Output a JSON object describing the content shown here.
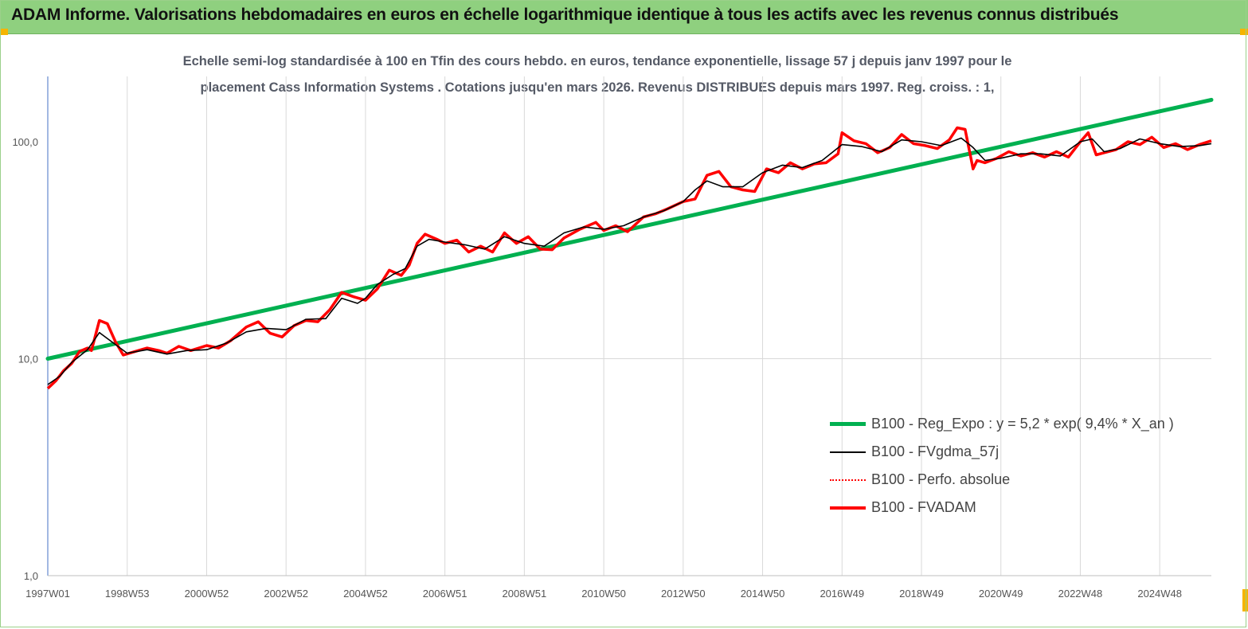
{
  "header": {
    "title": "ADAM Informe. Valorisations hebdomadaires en euros en échelle logarithmique identique à tous les actifs avec les revenus connus distribués"
  },
  "colors": {
    "header_bg": "#8fd07f",
    "trend": "#00b050",
    "fvgdma": "#000000",
    "perfo": "#ff0000",
    "fvadam": "#ff0000"
  },
  "chart_data": {
    "type": "line",
    "title_line1": "Echelle semi-log standardisée à 100 en Tfin des cours hebdo. en euros, tendance exponentielle, lissage 57 j depuis janv 1997 pour le",
    "title_line2": "placement Cass Information Systems .  Cotations jusqu'en mars 2026. Revenus DISTRIBUES depuis mars 1997.  Reg. croiss. : 1,",
    "y_scale": "log",
    "ylim": [
      1,
      200
    ],
    "y_ticks": [
      {
        "value": 1,
        "label": "1,0"
      },
      {
        "value": 10,
        "label": "10,0"
      },
      {
        "value": 100,
        "label": "100,0"
      }
    ],
    "xlim": [
      1997.0,
      2026.3
    ],
    "x_ticks": [
      {
        "year": 1997.0,
        "label": "1997W01"
      },
      {
        "year": 1999.0,
        "label": "1998W53"
      },
      {
        "year": 2001.0,
        "label": "2000W52"
      },
      {
        "year": 2003.0,
        "label": "2002W52"
      },
      {
        "year": 2005.0,
        "label": "2004W52"
      },
      {
        "year": 2007.0,
        "label": "2006W51"
      },
      {
        "year": 2009.0,
        "label": "2008W51"
      },
      {
        "year": 2011.0,
        "label": "2010W50"
      },
      {
        "year": 2013.0,
        "label": "2012W50"
      },
      {
        "year": 2015.0,
        "label": "2014W50"
      },
      {
        "year": 2017.0,
        "label": "2016W49"
      },
      {
        "year": 2019.0,
        "label": "2018W49"
      },
      {
        "year": 2021.0,
        "label": "2020W49"
      },
      {
        "year": 2023.0,
        "label": "2022W48"
      },
      {
        "year": 2025.0,
        "label": "2024W48"
      }
    ],
    "grid": "vertical",
    "legend_position": "bottom-right",
    "series": [
      {
        "name": "B100 - Reg_Expo : y = 5,2 *  exp( 9,4% *   X_an )",
        "style": "trend",
        "x": [
          1997.0,
          2026.3
        ],
        "y": [
          10.0,
          156.0
        ]
      },
      {
        "name": "B100 - FVgdma_57j",
        "style": "smooth",
        "x": [
          1997.0,
          1997.3,
          1997.6,
          1998.0,
          1998.3,
          1998.6,
          1999.0,
          1999.5,
          2000.0,
          2000.5,
          2001.0,
          2001.5,
          2002.0,
          2002.5,
          2003.0,
          2003.5,
          2004.0,
          2004.4,
          2004.8,
          2005.0,
          2005.3,
          2005.7,
          2006.0,
          2006.3,
          2006.6,
          2007.0,
          2007.5,
          2008.0,
          2008.5,
          2009.0,
          2009.5,
          2010.0,
          2010.5,
          2011.0,
          2011.5,
          2012.0,
          2012.5,
          2013.0,
          2013.3,
          2013.6,
          2014.0,
          2014.5,
          2015.0,
          2015.5,
          2016.0,
          2016.5,
          2017.0,
          2017.5,
          2018.0,
          2018.5,
          2019.0,
          2019.5,
          2020.0,
          2020.3,
          2020.6,
          2021.0,
          2021.5,
          2022.0,
          2022.5,
          2023.0,
          2023.3,
          2023.6,
          2024.0,
          2024.5,
          2025.0,
          2025.5,
          2026.0,
          2026.3
        ],
        "y": [
          7.6,
          8.3,
          9.6,
          11.0,
          13.2,
          12.0,
          10.6,
          11.0,
          10.5,
          10.9,
          11.0,
          11.8,
          13.3,
          13.8,
          13.6,
          15.2,
          15.3,
          19.0,
          18.0,
          19.0,
          22.0,
          24.5,
          26.0,
          33.0,
          35.5,
          34.5,
          33.5,
          32.0,
          36.5,
          34.0,
          33.0,
          38.0,
          40.5,
          39.5,
          41.0,
          45.0,
          48.0,
          53.0,
          60.0,
          66.0,
          62.0,
          62.0,
          72.0,
          78.0,
          76.0,
          82.0,
          97.0,
          95.0,
          90.0,
          102.0,
          100.0,
          96.0,
          104.0,
          94.0,
          82.0,
          84.0,
          88.0,
          88.0,
          86.0,
          100.0,
          103.0,
          90.0,
          93.0,
          103.0,
          98.0,
          95.0,
          96.0,
          98.0
        ]
      },
      {
        "name": "B100 - Perfo. absolue",
        "style": "dotted",
        "x": [],
        "y": []
      },
      {
        "name": "B100 - FVADAM",
        "style": "thick",
        "x": [
          1997.0,
          1997.2,
          1997.4,
          1997.6,
          1997.8,
          1998.0,
          1998.1,
          1998.3,
          1998.5,
          1998.7,
          1998.9,
          1999.2,
          1999.5,
          1999.8,
          2000.0,
          2000.3,
          2000.6,
          2001.0,
          2001.3,
          2001.6,
          2002.0,
          2002.3,
          2002.6,
          2002.9,
          2003.2,
          2003.5,
          2003.8,
          2004.1,
          2004.4,
          2004.7,
          2005.0,
          2005.3,
          2005.6,
          2005.9,
          2006.1,
          2006.3,
          2006.5,
          2006.8,
          2007.0,
          2007.3,
          2007.6,
          2007.9,
          2008.2,
          2008.5,
          2008.8,
          2009.1,
          2009.4,
          2009.7,
          2010.0,
          2010.4,
          2010.8,
          2011.0,
          2011.3,
          2011.6,
          2012.0,
          2012.3,
          2012.6,
          2013.0,
          2013.3,
          2013.6,
          2013.9,
          2014.2,
          2014.5,
          2014.8,
          2015.1,
          2015.4,
          2015.7,
          2016.0,
          2016.3,
          2016.6,
          2016.9,
          2017.0,
          2017.3,
          2017.6,
          2017.9,
          2018.2,
          2018.5,
          2018.8,
          2019.1,
          2019.4,
          2019.7,
          2019.9,
          2020.1,
          2020.3,
          2020.4,
          2020.6,
          2020.9,
          2021.2,
          2021.5,
          2021.8,
          2022.1,
          2022.4,
          2022.7,
          2023.0,
          2023.2,
          2023.4,
          2023.6,
          2023.9,
          2024.2,
          2024.5,
          2024.8,
          2025.1,
          2025.4,
          2025.7,
          2026.0,
          2026.3
        ],
        "y": [
          7.3,
          7.9,
          8.8,
          9.5,
          10.8,
          11.2,
          10.9,
          15.0,
          14.5,
          12.0,
          10.4,
          10.8,
          11.2,
          10.9,
          10.6,
          11.4,
          10.9,
          11.5,
          11.2,
          12.1,
          14.0,
          14.8,
          13.1,
          12.6,
          14.2,
          15.0,
          14.8,
          16.8,
          20.2,
          19.3,
          18.6,
          21.0,
          25.6,
          24.2,
          27.0,
          34.0,
          37.5,
          35.5,
          34.0,
          35.2,
          31.0,
          33.0,
          31.0,
          38.0,
          34.0,
          36.5,
          32.0,
          31.8,
          36.0,
          39.5,
          42.5,
          39.0,
          41.0,
          38.5,
          45.0,
          46.5,
          49.0,
          53.0,
          54.5,
          70.0,
          73.0,
          62.0,
          60.0,
          59.0,
          75.0,
          72.0,
          80.0,
          75.0,
          79.0,
          80.0,
          88.0,
          110.0,
          101.0,
          98.0,
          89.0,
          94.0,
          108.0,
          98.0,
          96.0,
          93.0,
          102.0,
          116.0,
          114.0,
          75.0,
          82.0,
          80.0,
          84.0,
          90.0,
          86.0,
          89.0,
          85.0,
          90.0,
          85.0,
          100.0,
          110.0,
          87.0,
          89.0,
          92.0,
          100.0,
          97.0,
          105.0,
          94.0,
          98.0,
          92.0,
          97.0,
          101.0
        ]
      }
    ]
  }
}
